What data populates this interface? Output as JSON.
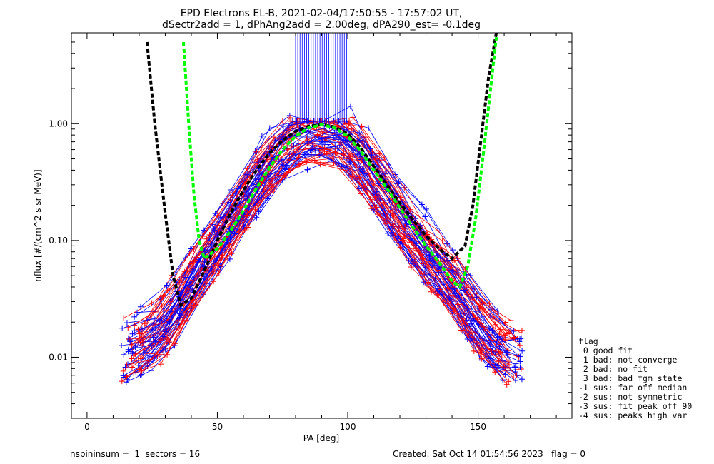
{
  "chart_data": {
    "type": "line",
    "title_line1": "EPD Electrons EL-B, 2021-02-04/17:50:55 - 17:57:02 UT,",
    "title_line2": "dSectr2add = 1, dPhAng2add = 2.00deg, dPA290_est=  -0.1deg",
    "xlabel": "PA [deg]",
    "ylabel": "nflux [#/(cm^2 s sr MeV)]",
    "xlim": [
      -6,
      186
    ],
    "ylim": [
      0.003,
      6.0
    ],
    "y_scale": "log",
    "x_ticks": [
      0,
      50,
      100,
      150
    ],
    "x_tick_labels": [
      "0",
      "50",
      "100",
      "150"
    ],
    "y_ticks": [
      0.01,
      0.1,
      1.0
    ],
    "y_tick_labels": [
      "0.01",
      "0.10",
      "1.00"
    ],
    "grid": false,
    "colors": {
      "red": "#ff0000",
      "blue": "#0000ff",
      "black": "#000000",
      "green": "#00ff00"
    },
    "fit_curves": [
      {
        "color": "#000000",
        "style": "dashed",
        "x": [
          23,
          26,
          30,
          33,
          36,
          40,
          45,
          50,
          55,
          60,
          65,
          70,
          75,
          80,
          85,
          90,
          95,
          100,
          105,
          110,
          115,
          120,
          125,
          130,
          135,
          140,
          145,
          148,
          151,
          154,
          157
        ],
        "y": [
          5.0,
          1.0,
          0.17,
          0.05,
          0.028,
          0.032,
          0.055,
          0.1,
          0.17,
          0.27,
          0.4,
          0.56,
          0.72,
          0.86,
          0.95,
          0.98,
          0.94,
          0.82,
          0.62,
          0.43,
          0.3,
          0.21,
          0.15,
          0.11,
          0.085,
          0.07,
          0.09,
          0.2,
          0.7,
          2.5,
          6.0
        ]
      },
      {
        "color": "#00ff00",
        "style": "dashed",
        "x": [
          37,
          39,
          41,
          43,
          45,
          50,
          55,
          60,
          65,
          70,
          75,
          80,
          85,
          90,
          95,
          100,
          105,
          110,
          115,
          120,
          125,
          130,
          135,
          140,
          143,
          146,
          149,
          152,
          155,
          157
        ],
        "y": [
          5.0,
          1.0,
          0.25,
          0.1,
          0.07,
          0.085,
          0.12,
          0.18,
          0.28,
          0.42,
          0.6,
          0.78,
          0.92,
          0.98,
          0.92,
          0.78,
          0.58,
          0.4,
          0.28,
          0.19,
          0.13,
          0.09,
          0.065,
          0.045,
          0.04,
          0.06,
          0.15,
          0.55,
          2.2,
          5.5
        ]
      }
    ],
    "data_envelope": {
      "pa": [
        14,
        18,
        22,
        26,
        30,
        35,
        40,
        45,
        50,
        55,
        60,
        65,
        70,
        75,
        80,
        85,
        90,
        95,
        100,
        105,
        110,
        115,
        120,
        125,
        130,
        135,
        140,
        145,
        150,
        155,
        160,
        165,
        168
      ],
      "flux_center": [
        0.012,
        0.013,
        0.014,
        0.016,
        0.02,
        0.03,
        0.045,
        0.07,
        0.1,
        0.15,
        0.22,
        0.33,
        0.48,
        0.65,
        0.82,
        0.9,
        0.88,
        0.85,
        0.75,
        0.55,
        0.36,
        0.25,
        0.17,
        0.12,
        0.085,
        0.06,
        0.045,
        0.03,
        0.02,
        0.015,
        0.012,
        0.011,
        0.011
      ],
      "spread_decades": 0.25
    },
    "legend": {
      "title": "flag",
      "entries": [
        " 0 good fit",
        " 1 bad: not converge",
        " 2 bad: no fit",
        " 3 bad: bad fgm state",
        "-1 sus: far off median",
        "-2 sus: not symmetric",
        "-3 sus: fit peak off 90",
        "-4 sus: peaks high var"
      ]
    },
    "footer_left": "nspininsum =  1  sectors = 16",
    "footer_right": "Created: Sat Oct 14 01:54:56 2023   flag = 0"
  }
}
